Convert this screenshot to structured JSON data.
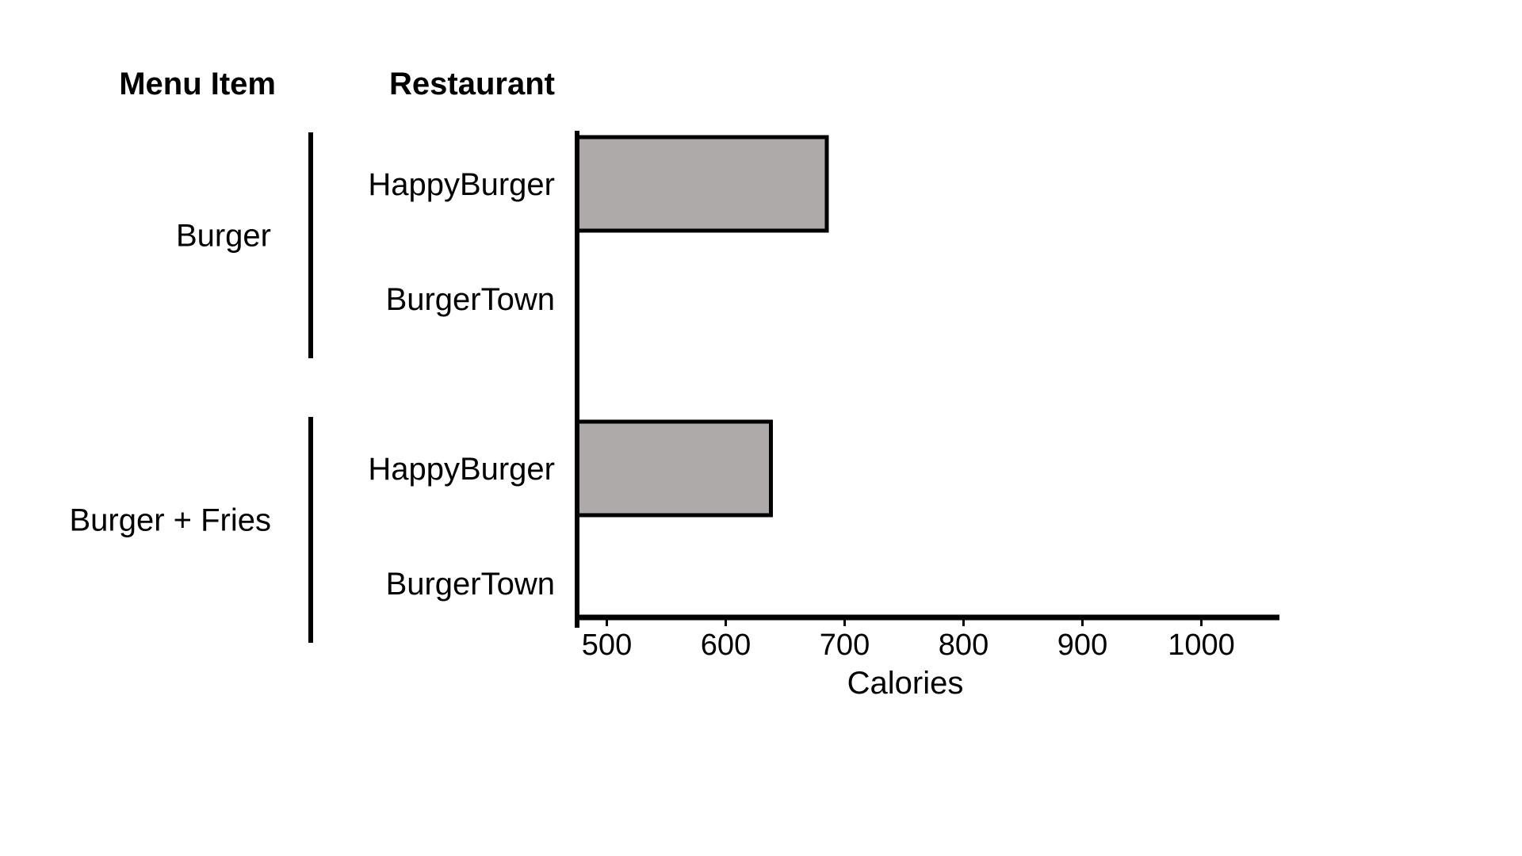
{
  "chart_data": {
    "type": "bar",
    "orientation": "horizontal",
    "headers": {
      "group": "Menu Item",
      "category": "Restaurant"
    },
    "groups": [
      {
        "name": "Burger",
        "rows": [
          {
            "restaurant": "HappyBurger",
            "value": 685
          },
          {
            "restaurant": "BurgerTown",
            "value": null
          }
        ]
      },
      {
        "name": "Burger + Fries",
        "rows": [
          {
            "restaurant": "HappyBurger",
            "value": 638
          },
          {
            "restaurant": "BurgerTown",
            "value": null
          }
        ]
      }
    ],
    "xlabel": "Calories",
    "xticks": [
      "500",
      "600",
      "700",
      "800",
      "900",
      "1000"
    ],
    "xlim": [
      475,
      1065
    ],
    "bar_color": "#ADAAA9",
    "bar_stroke": "#000000",
    "grid": false
  }
}
